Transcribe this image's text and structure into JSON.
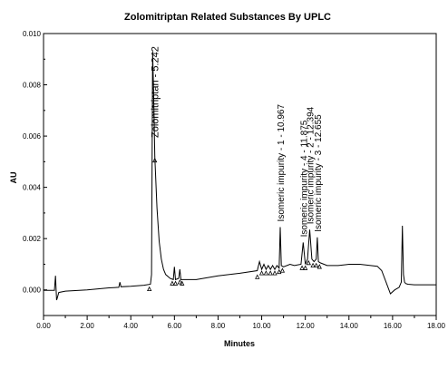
{
  "chart_data": {
    "type": "line",
    "title": "Zolomitriptan Related Substances By UPLC",
    "xlabel": "Minutes",
    "ylabel": "AU",
    "xlim": [
      0,
      18
    ],
    "ylim": [
      -0.001,
      0.01
    ],
    "x_ticks": [
      "0.00",
      "2.00",
      "4.00",
      "6.00",
      "8.00",
      "10.00",
      "12.00",
      "14.00",
      "16.00",
      "18.00"
    ],
    "y_ticks": [
      "0.000",
      "0.002",
      "0.004",
      "0.006",
      "0.008",
      "0.010"
    ],
    "grid": false,
    "peaks": [
      {
        "label": "Zolomitriptan - 5.242",
        "rt": 5.0,
        "height": 0.0093
      },
      {
        "label": "Isomeric impurity - 1 - 10.967",
        "rt": 10.85,
        "height": 0.00245
      },
      {
        "label": "Isomeric impurity - 4 - 11.875",
        "rt": 11.9,
        "height": 0.00185
      },
      {
        "label": "Isomeric impurity - 2 - 12.394",
        "rt": 12.2,
        "height": 0.00235
      },
      {
        "label": "Isomeric impurity - 3 - 12.655",
        "rt": 12.55,
        "height": 0.00205
      }
    ],
    "trace": {
      "x": [
        0.0,
        0.5,
        0.55,
        0.6,
        0.62,
        0.7,
        1.0,
        2.0,
        3.0,
        3.45,
        3.5,
        3.55,
        4.0,
        4.6,
        4.9,
        4.95,
        5.0,
        5.05,
        5.1,
        5.2,
        5.3,
        5.4,
        5.5,
        5.6,
        5.8,
        5.95,
        6.0,
        6.05,
        6.2,
        6.25,
        6.3,
        6.5,
        7.0,
        8.0,
        9.0,
        9.8,
        9.9,
        10.0,
        10.1,
        10.2,
        10.3,
        10.4,
        10.5,
        10.6,
        10.7,
        10.8,
        10.85,
        10.9,
        11.0,
        11.3,
        11.5,
        11.8,
        11.9,
        12.0,
        12.1,
        12.2,
        12.3,
        12.4,
        12.5,
        12.55,
        12.6,
        12.7,
        13.0,
        13.5,
        14.0,
        14.5,
        15.0,
        15.3,
        15.5,
        15.7,
        15.9,
        16.1,
        16.2,
        16.3,
        16.4,
        16.45,
        16.5,
        16.55,
        16.6,
        16.7,
        17.0,
        17.5,
        18.0
      ],
      "y": [
        -2e-05,
        -2e-05,
        0.00055,
        -0.0004,
        -0.00035,
        -0.0001,
        -5e-05,
        0.0,
        8e-05,
        0.0001,
        0.0003,
        0.00012,
        0.00014,
        0.00018,
        0.00022,
        0.0006,
        0.0093,
        0.0075,
        0.0052,
        0.0032,
        0.0019,
        0.0012,
        0.0008,
        0.0006,
        0.00045,
        0.0004,
        0.0009,
        0.0004,
        0.00045,
        0.0008,
        0.0004,
        0.0004,
        0.0004,
        0.00055,
        0.00065,
        0.00075,
        0.0011,
        0.0008,
        0.001,
        0.0008,
        0.00095,
        0.0008,
        0.00095,
        0.0008,
        0.00095,
        0.00085,
        0.00245,
        0.00095,
        0.0009,
        0.001,
        0.00095,
        0.001,
        0.00185,
        0.001,
        0.0012,
        0.00235,
        0.0012,
        0.0011,
        0.0012,
        0.00205,
        0.0011,
        0.00105,
        0.00095,
        0.00095,
        0.001,
        0.001,
        0.00095,
        0.00092,
        0.00075,
        0.0003,
        -0.00015,
        0.0,
        5e-05,
        0.0001,
        0.0003,
        0.0025,
        0.0006,
        0.0003,
        0.00025,
        0.00022,
        0.0002,
        0.0002,
        0.0002
      ]
    },
    "integration_marks": [
      4.85,
      5.1,
      5.9,
      6.05,
      6.25,
      6.35,
      9.8,
      10.0,
      10.2,
      10.4,
      10.6,
      10.8,
      10.95,
      11.85,
      12.0,
      12.15,
      12.35,
      12.5,
      12.65
    ],
    "colors": {
      "trace": "#000000",
      "axes": "#000000"
    }
  }
}
